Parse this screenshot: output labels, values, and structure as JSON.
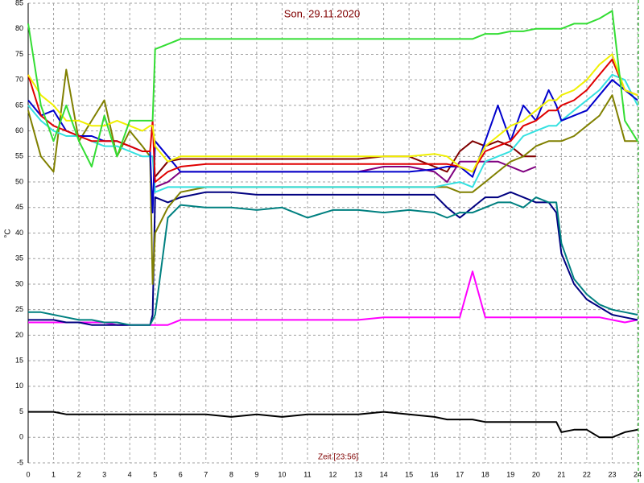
{
  "chart_data": {
    "type": "line",
    "title": "Son, 29.11.2020",
    "x_label": "Zeit [23:56]",
    "y_label": "°C",
    "x": [
      0,
      0.5,
      1,
      1.5,
      2,
      2.5,
      3,
      3.5,
      4,
      4.5,
      4.8,
      4.9,
      5,
      5.5,
      6,
      7,
      8,
      9,
      10,
      11,
      12,
      13,
      14,
      15,
      16,
      16.5,
      17,
      17.5,
      18,
      18.5,
      19,
      19.5,
      20,
      20.5,
      20.8,
      21,
      21.5,
      22,
      22.5,
      23,
      23.5,
      24
    ],
    "xlim": [
      0,
      24
    ],
    "xticks": [
      0,
      1,
      2,
      3,
      4,
      5,
      6,
      7,
      8,
      9,
      10,
      11,
      12,
      13,
      14,
      15,
      16,
      17,
      18,
      19,
      20,
      21,
      22,
      23,
      24
    ],
    "ylim": [
      -5,
      85
    ],
    "yticks": [
      -5,
      0,
      5,
      10,
      15,
      20,
      25,
      30,
      35,
      40,
      45,
      50,
      55,
      60,
      65,
      70,
      75,
      80,
      85
    ],
    "grid": true,
    "series": [
      {
        "color": "#ff00ff",
        "values": [
          22.5,
          22.5,
          22.5,
          22.5,
          22.5,
          22.5,
          22.5,
          22,
          22,
          22,
          22,
          22,
          22,
          22,
          23,
          23,
          23,
          23,
          23,
          23,
          23,
          23,
          23.5,
          23.5,
          23.5,
          23.5,
          23.5,
          32.5,
          23.5,
          23.5,
          23.5,
          23.5,
          23.5,
          23.5,
          23.5,
          23.5,
          23.5,
          23.5,
          23.5,
          23,
          22.5,
          23
        ]
      },
      {
        "color": "#000000",
        "values": [
          5,
          5,
          5,
          4.5,
          4.5,
          4.5,
          4.5,
          4.5,
          4.5,
          4.5,
          4.5,
          4.5,
          4.5,
          4.5,
          4.5,
          4.5,
          4,
          4.5,
          4,
          4.5,
          4.5,
          4.5,
          5,
          4.5,
          4,
          3.5,
          3.5,
          3.5,
          3,
          3,
          3,
          3,
          3,
          3,
          3,
          1,
          1.5,
          1.5,
          0,
          0,
          1,
          1.5
        ]
      },
      {
        "color": "#000080",
        "values": [
          23,
          23,
          23,
          22.5,
          22.5,
          22,
          22,
          22,
          22,
          22,
          22,
          24,
          47,
          46,
          47,
          48,
          48,
          47.5,
          47.5,
          47.5,
          47.5,
          47.5,
          47.5,
          47.5,
          47.5,
          45,
          43,
          45,
          47,
          47,
          48,
          47,
          46,
          46,
          44,
          36,
          30,
          27,
          25.5,
          24,
          23.5,
          23
        ]
      },
      {
        "color": "#008080",
        "values": [
          24.5,
          24.5,
          24,
          23.5,
          23,
          23,
          22.5,
          22.5,
          22,
          22,
          22,
          23,
          24,
          43,
          45.5,
          45,
          45,
          44.5,
          45,
          43,
          44.5,
          44.5,
          44,
          44.5,
          44,
          43,
          44,
          44,
          45,
          46,
          46,
          45,
          47,
          46,
          46,
          38,
          31,
          28,
          26,
          25,
          24.5,
          24
        ]
      },
      {
        "color": "#800080",
        "values": [
          null,
          null,
          null,
          null,
          null,
          null,
          null,
          null,
          null,
          null,
          null,
          null,
          49,
          50,
          52,
          52,
          52,
          52,
          52,
          52,
          52,
          52,
          53,
          53,
          52,
          50,
          54,
          54,
          54,
          54,
          53,
          52,
          53,
          null,
          null,
          null,
          null,
          null,
          null,
          null,
          null,
          null
        ]
      },
      {
        "color": "#800000",
        "values": [
          null,
          null,
          null,
          null,
          null,
          null,
          null,
          null,
          null,
          null,
          null,
          null,
          51,
          54,
          54.5,
          54.5,
          54.5,
          54.5,
          54.5,
          54.5,
          54.5,
          54.5,
          55,
          55,
          53,
          52,
          56,
          58,
          57,
          58,
          57,
          55,
          55,
          null,
          null,
          null,
          null,
          null,
          null,
          null,
          null,
          null
        ]
      },
      {
        "color": "#808000",
        "values": [
          64,
          55,
          52,
          72,
          58,
          62,
          66,
          55,
          60,
          57,
          55,
          30,
          40,
          45,
          48,
          49,
          49,
          49,
          49,
          49,
          49,
          49,
          49,
          49,
          49,
          49,
          48,
          48,
          50,
          52,
          54,
          55,
          57,
          58,
          58,
          58,
          59,
          61,
          63,
          67,
          58,
          58
        ]
      },
      {
        "color": "#33e0e0",
        "values": [
          65,
          62,
          60,
          59,
          59,
          58,
          57,
          57,
          56,
          55,
          55,
          55,
          48,
          49,
          49,
          49,
          49,
          49,
          49,
          49,
          49,
          49,
          49,
          49,
          49,
          49.5,
          50,
          49,
          54,
          55,
          56,
          59,
          60,
          61,
          61,
          62,
          64,
          66,
          68,
          71,
          70,
          65
        ]
      },
      {
        "color": "#0000cc",
        "values": [
          66,
          63,
          64,
          60,
          59,
          59,
          58,
          58,
          57,
          56,
          56,
          44,
          58,
          55,
          52,
          52,
          52,
          52,
          52,
          52,
          52,
          52,
          52,
          52,
          52.5,
          53,
          53,
          51,
          58,
          65,
          58,
          65,
          62,
          68,
          65,
          62,
          63,
          64,
          67,
          70,
          68,
          66
        ]
      },
      {
        "color": "#e00000",
        "values": [
          71,
          63,
          61,
          60,
          59,
          58,
          58,
          58,
          57,
          56,
          56,
          62,
          50,
          52,
          53,
          53.5,
          53.5,
          53.5,
          53.5,
          53.5,
          53.5,
          53.5,
          53.5,
          53.5,
          53.5,
          53.5,
          53,
          52,
          56,
          57,
          58,
          61,
          62,
          64,
          64,
          65,
          66,
          68,
          71,
          74,
          68,
          67
        ]
      },
      {
        "color": "#f0f000",
        "values": [
          71,
          67,
          65,
          62,
          62,
          61,
          61,
          62,
          61,
          60,
          61,
          61,
          57,
          54,
          55,
          55,
          55,
          55,
          55,
          55,
          55,
          55,
          55,
          55,
          55.5,
          55,
          53,
          52,
          57,
          59,
          61,
          62,
          64,
          66,
          66,
          67,
          68,
          70,
          73,
          75,
          68,
          67
        ]
      },
      {
        "color": "#33dd33",
        "values": [
          81,
          65,
          58,
          65,
          58,
          53,
          63,
          55,
          62,
          62,
          62,
          62,
          76,
          77,
          78,
          78,
          78,
          78,
          78,
          78,
          78,
          78,
          78,
          78,
          78,
          78,
          78,
          78,
          79,
          79,
          79.5,
          79.5,
          80,
          80,
          80,
          80,
          81,
          81,
          82,
          83.5,
          62,
          58
        ]
      }
    ]
  }
}
